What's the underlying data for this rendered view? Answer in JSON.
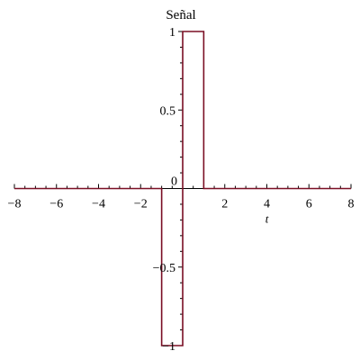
{
  "chart_data": {
    "type": "line",
    "title": "Señal",
    "xlabel": "t",
    "ylabel": "",
    "xlim": [
      -8,
      8
    ],
    "ylim": [
      -1,
      1
    ],
    "x_ticks": [
      -8,
      -6,
      -4,
      -2,
      2,
      4,
      6,
      8
    ],
    "x_tick_labels": [
      "−8",
      "−6",
      "−4",
      "−2",
      "2",
      "4",
      "6",
      "8"
    ],
    "y_ticks": [
      1,
      0.5,
      -0.5,
      -1
    ],
    "y_tick_labels": [
      "1",
      "0.5",
      "−0.5",
      "−1"
    ],
    "origin_label": "0",
    "grid": false,
    "series": [
      {
        "color": "#7a0f24",
        "x": [
          -8,
          -1,
          -1,
          0,
          0,
          1,
          1,
          8
        ],
        "y": [
          0,
          0,
          -1,
          -1,
          1,
          1,
          0,
          0
        ]
      }
    ]
  }
}
